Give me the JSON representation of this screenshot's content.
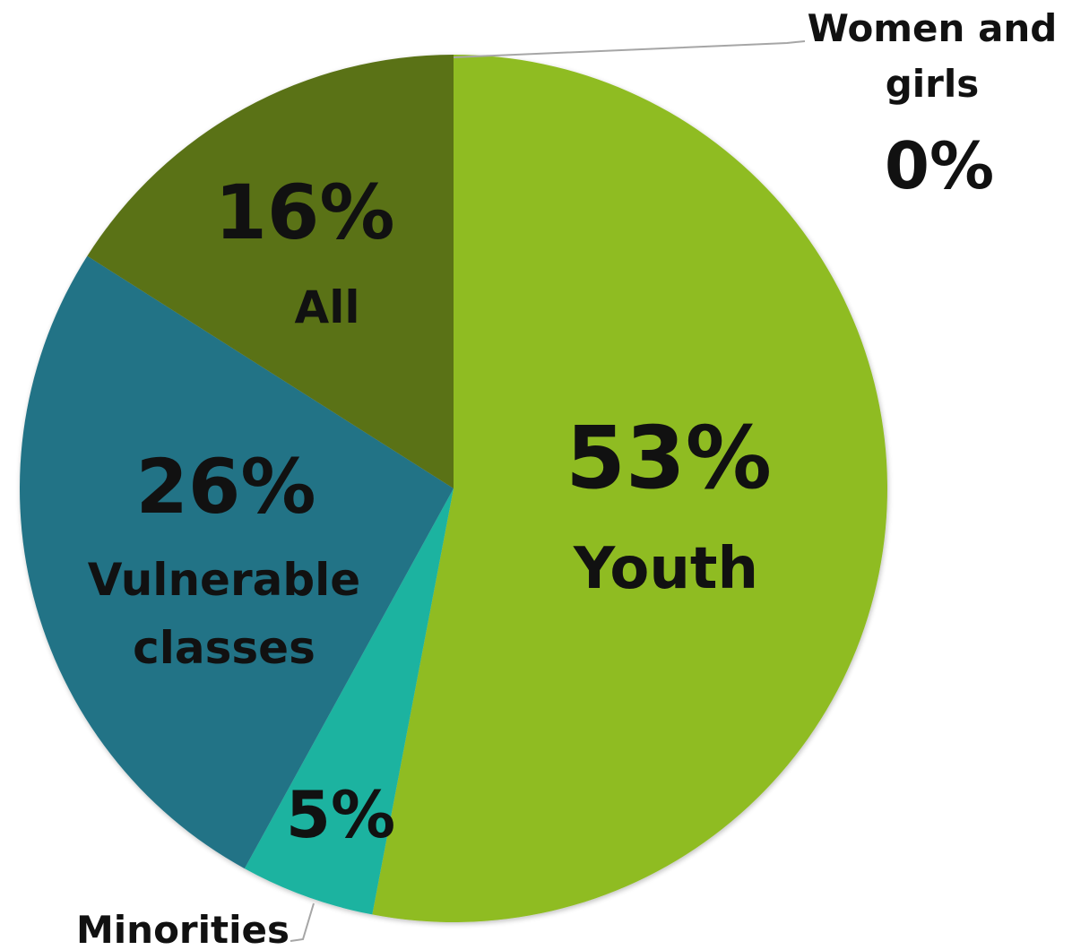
{
  "chart_data": {
    "type": "pie",
    "title": "",
    "unit": "%",
    "start_angle_deg": 0,
    "direction": "clockwise",
    "slices": [
      {
        "label": "Women and girls",
        "value": 0,
        "display": "0%",
        "color": "#8fbc23"
      },
      {
        "label": "Youth",
        "value": 53,
        "display": "53%",
        "color": "#8fbc23"
      },
      {
        "label": "Minorities",
        "value": 5,
        "display": "5%",
        "color": "#1cb3a0"
      },
      {
        "label": "Vulnerable classes",
        "value": 26,
        "display": "26%",
        "color": "#217386"
      },
      {
        "label": "All",
        "value": 16,
        "display": "16%",
        "color": "#5a7219"
      }
    ]
  },
  "labels": {
    "women_line1": "Women and",
    "women_line2": "girls",
    "women_pct": "0%",
    "youth_pct": "53%",
    "youth_name": "Youth",
    "minorities_pct": "5%",
    "minorities_name": "Minorities",
    "vulnerable_pct": "26%",
    "vulnerable_line1": "Vulnerable",
    "vulnerable_line2": "classes",
    "all_pct": "16%",
    "all_name": "All"
  },
  "colors": {
    "leader_line": "#a6a6a6",
    "text": "#111111"
  }
}
